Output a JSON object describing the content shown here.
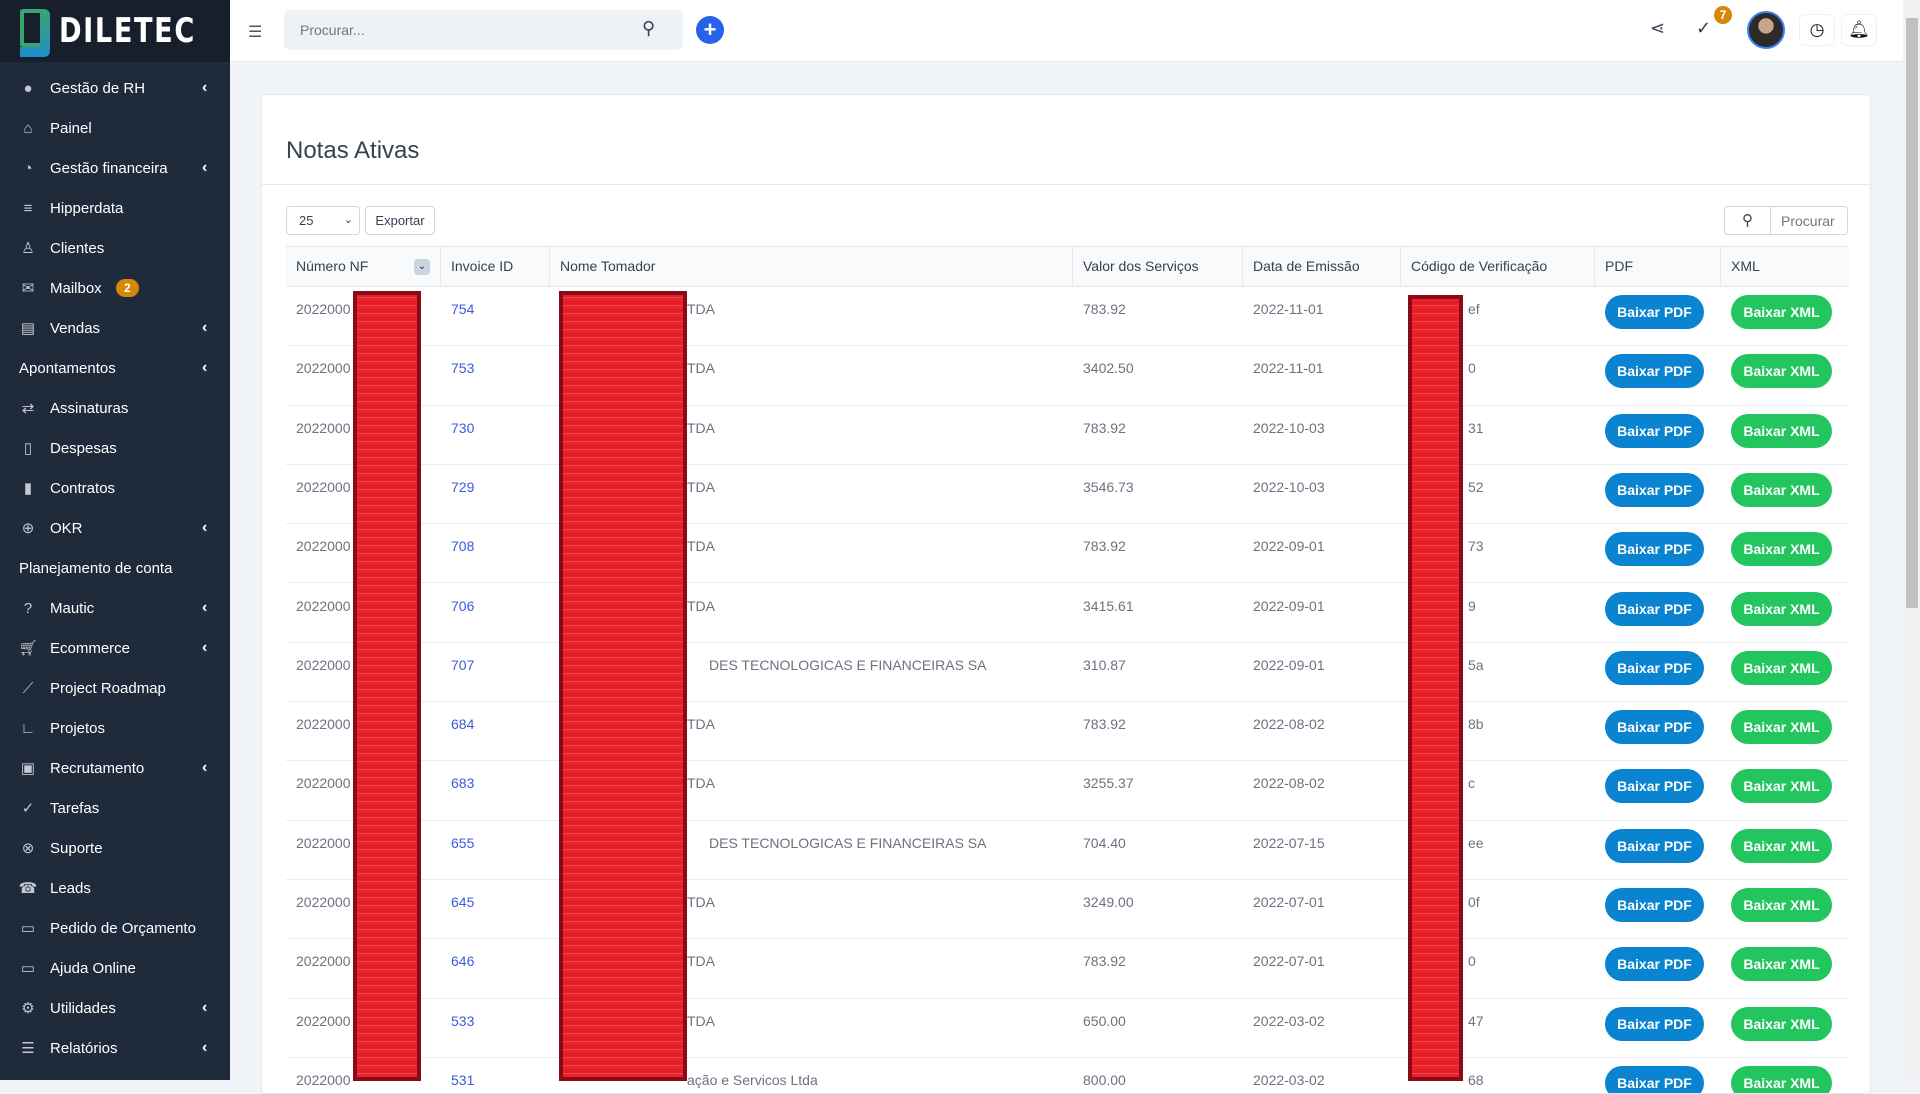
{
  "app": {
    "logo": "DILETEC"
  },
  "colors": {
    "sidebar": "#1f2a3b",
    "pdf_button": "#0a84d0",
    "xml_button": "#22c55e",
    "badge": "#d48806",
    "redaction": "#e8232c"
  },
  "sidebar": {
    "items": [
      {
        "label": "Gestão de RH",
        "icon": "user-circle-icon",
        "chevron": true
      },
      {
        "label": "Painel",
        "icon": "home-icon"
      },
      {
        "label": "Gestão financeira",
        "icon": "pie-chart-icon",
        "chevron": true
      },
      {
        "label": "Hipperdata",
        "icon": "database-icon"
      },
      {
        "label": "Clientes",
        "icon": "user-icon"
      },
      {
        "label": "Mailbox",
        "icon": "mail-icon",
        "badge": "2"
      },
      {
        "label": "Vendas",
        "icon": "receipt-icon",
        "chevron": true
      },
      {
        "label": "Apontamentos",
        "section": true,
        "chevron": true
      },
      {
        "label": "Assinaturas",
        "icon": "repeat-icon"
      },
      {
        "label": "Despesas",
        "icon": "file-text-icon"
      },
      {
        "label": "Contratos",
        "icon": "file-contract-icon"
      },
      {
        "label": "OKR",
        "icon": "crosshair-icon",
        "chevron": true
      },
      {
        "label": "Planejamento de conta",
        "section": true
      },
      {
        "label": "Mautic",
        "icon": "question-circle-icon",
        "chevron": true
      },
      {
        "label": "Ecommerce",
        "icon": "cart-icon",
        "chevron": true
      },
      {
        "label": "Project Roadmap",
        "icon": "line-chart-icon"
      },
      {
        "label": "Projetos",
        "icon": "gantt-icon"
      },
      {
        "label": "Recrutamento",
        "icon": "contact-book-icon",
        "chevron": true
      },
      {
        "label": "Tarefas",
        "icon": "check-circle-icon"
      },
      {
        "label": "Suporte",
        "icon": "lifebuoy-icon"
      },
      {
        "label": "Leads",
        "icon": "phone-icon"
      },
      {
        "label": "Pedido de Orçamento",
        "icon": "file-icon"
      },
      {
        "label": "Ajuda Online",
        "icon": "folder-icon"
      },
      {
        "label": "Utilidades",
        "icon": "gears-icon",
        "chevron": true
      },
      {
        "label": "Relatórios",
        "icon": "bar-list-icon",
        "chevron": true
      }
    ]
  },
  "topbar": {
    "search_placeholder": "Procurar...",
    "tasks_badge": "7"
  },
  "page": {
    "title": "Notas Ativas",
    "page_length": "25",
    "export_label": "Exportar",
    "search_placeholder": "Procurar"
  },
  "table": {
    "columns": [
      "Número NF",
      "Invoice ID",
      "Nome Tomador",
      "Valor dos Serviços",
      "Data de Emissão",
      "Código de Verificação",
      "PDF",
      "XML"
    ],
    "pdf_label": "Baixar PDF",
    "xml_label": "Baixar XML",
    "rows": [
      {
        "numero": "2022000",
        "invoice": "754",
        "tomador": "TDA",
        "valor": "783.92",
        "data": "2022-11-01",
        "codigo": "ef"
      },
      {
        "numero": "2022000",
        "invoice": "753",
        "tomador": "TDA",
        "valor": "3402.50",
        "data": "2022-11-01",
        "codigo": "0"
      },
      {
        "numero": "2022000",
        "invoice": "730",
        "tomador": "TDA",
        "valor": "783.92",
        "data": "2022-10-03",
        "codigo": "31"
      },
      {
        "numero": "2022000",
        "invoice": "729",
        "tomador": "TDA",
        "valor": "3546.73",
        "data": "2022-10-03",
        "codigo": "52"
      },
      {
        "numero": "2022000",
        "invoice": "708",
        "tomador": "TDA",
        "valor": "783.92",
        "data": "2022-09-01",
        "codigo": "73"
      },
      {
        "numero": "2022000",
        "invoice": "706",
        "tomador": "TDA",
        "valor": "3415.61",
        "data": "2022-09-01",
        "codigo": "9"
      },
      {
        "numero": "2022000",
        "invoice": "707",
        "tomador": "DES TECNOLOGICAS E FINANCEIRAS SA",
        "valor": "310.87",
        "data": "2022-09-01",
        "codigo": "5a"
      },
      {
        "numero": "2022000",
        "invoice": "684",
        "tomador": "TDA",
        "valor": "783.92",
        "data": "2022-08-02",
        "codigo": "8b"
      },
      {
        "numero": "2022000",
        "invoice": "683",
        "tomador": "TDA",
        "valor": "3255.37",
        "data": "2022-08-02",
        "codigo": "c"
      },
      {
        "numero": "2022000",
        "invoice": "655",
        "tomador": "DES TECNOLOGICAS E FINANCEIRAS SA",
        "valor": "704.40",
        "data": "2022-07-15",
        "codigo": "ee"
      },
      {
        "numero": "2022000",
        "invoice": "645",
        "tomador": "TDA",
        "valor": "3249.00",
        "data": "2022-07-01",
        "codigo": "0f"
      },
      {
        "numero": "2022000",
        "invoice": "646",
        "tomador": "TDA",
        "valor": "783.92",
        "data": "2022-07-01",
        "codigo": "0"
      },
      {
        "numero": "2022000",
        "invoice": "533",
        "tomador": "TDA",
        "valor": "650.00",
        "data": "2022-03-02",
        "codigo": "47"
      },
      {
        "numero": "2022000",
        "invoice": "531",
        "tomador": "ação e Servicos Ltda",
        "valor": "800.00",
        "data": "2022-03-02",
        "codigo": "68"
      }
    ]
  }
}
